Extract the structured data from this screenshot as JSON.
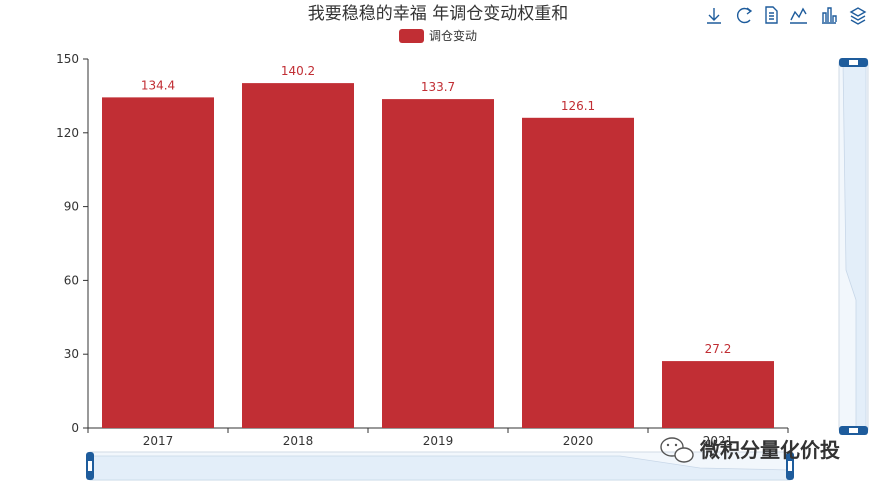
{
  "chart_data": {
    "type": "bar",
    "title": "我要稳稳的幸福 年调仓变动权重和",
    "legend": [
      "调仓变动"
    ],
    "categories": [
      "2017",
      "2018",
      "2019",
      "2020",
      "2021"
    ],
    "series": [
      {
        "name": "调仓变动",
        "values": [
          134.4,
          140.2,
          133.7,
          126.1,
          27.2
        ]
      }
    ],
    "data_labels": [
      "134.4",
      "140.2",
      "133.7",
      "126.1",
      "27.2"
    ],
    "yticks": [
      0,
      30,
      60,
      90,
      120,
      150
    ],
    "ylim": [
      0,
      150
    ],
    "grid": false,
    "legend_position": "top-center",
    "color": "#c12e34"
  },
  "toolbox": {
    "icons": [
      "download-icon",
      "refresh-icon",
      "data-view-icon",
      "line-chart-icon",
      "bar-chart-icon",
      "stack-icon"
    ],
    "color": "#1e5c9c"
  },
  "watermark": {
    "text": "微积分量化价投",
    "icon": "wechat-icon"
  },
  "datazoom": {
    "color": "#1e5c9c"
  }
}
